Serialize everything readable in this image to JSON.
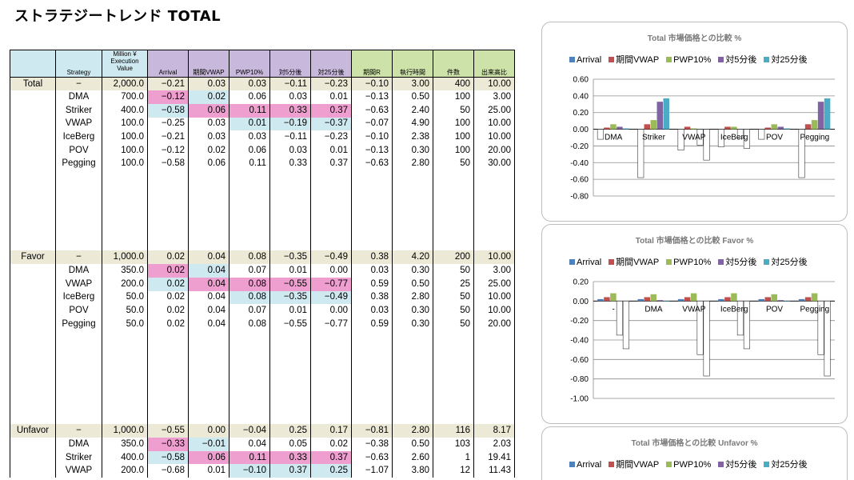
{
  "title": "ストラテジートレンド TOTAL",
  "headers": {
    "strategy": "Strategy",
    "mv1": "Million ¥",
    "mv2": "Execution",
    "mv3": "Value",
    "arrival": "Arrival",
    "kikan_vwap": "期間VWAP",
    "pwp10": "PWP10%",
    "tai5": "対5分後",
    "tai25": "対25分後",
    "kikan_r": "期間R",
    "exec_time": "執行時間",
    "count": "件数",
    "volume_ratio": "出来高比"
  },
  "table": {
    "total": {
      "label": "Total",
      "rows": [
        {
          "strategy": "−",
          "value": "2,000.0",
          "arrival": "−0.21",
          "vwap": "0.03",
          "pwp": "0.03",
          "t5": "−0.11",
          "t25": "−0.23",
          "r": "−0.10",
          "time": "3.00",
          "count": "400",
          "ratio": "10.00"
        },
        {
          "strategy": "DMA",
          "value": "700.0",
          "arrival": "−0.12",
          "vwap": "0.02",
          "pwp": "0.06",
          "t5": "0.03",
          "t25": "0.01",
          "r": "−0.13",
          "time": "0.50",
          "count": "100",
          "ratio": "3.00"
        },
        {
          "strategy": "Striker",
          "value": "400.0",
          "arrival": "−0.58",
          "vwap": "0.06",
          "pwp": "0.11",
          "t5": "0.33",
          "t25": "0.37",
          "r": "−0.63",
          "time": "2.40",
          "count": "50",
          "ratio": "25.00"
        },
        {
          "strategy": "VWAP",
          "value": "100.0",
          "arrival": "−0.25",
          "vwap": "0.03",
          "pwp": "0.01",
          "t5": "−0.19",
          "t25": "−0.37",
          "r": "−0.07",
          "time": "4.90",
          "count": "100",
          "ratio": "10.00"
        },
        {
          "strategy": "IceBerg",
          "value": "100.0",
          "arrival": "−0.21",
          "vwap": "0.03",
          "pwp": "0.03",
          "t5": "−0.11",
          "t25": "−0.23",
          "r": "−0.10",
          "time": "2.38",
          "count": "100",
          "ratio": "10.00"
        },
        {
          "strategy": "POV",
          "value": "100.0",
          "arrival": "−0.12",
          "vwap": "0.02",
          "pwp": "0.06",
          "t5": "0.03",
          "t25": "0.01",
          "r": "−0.13",
          "time": "0.30",
          "count": "100",
          "ratio": "20.00"
        },
        {
          "strategy": "Pegging",
          "value": "100.0",
          "arrival": "−0.58",
          "vwap": "0.06",
          "pwp": "0.11",
          "t5": "0.33",
          "t25": "0.37",
          "r": "−0.63",
          "time": "2.80",
          "count": "50",
          "ratio": "30.00"
        }
      ]
    },
    "favor": {
      "label": "Favor",
      "rows": [
        {
          "strategy": "−",
          "value": "1,000.0",
          "arrival": "0.02",
          "vwap": "0.04",
          "pwp": "0.08",
          "t5": "−0.35",
          "t25": "−0.49",
          "r": "0.38",
          "time": "4.20",
          "count": "200",
          "ratio": "10.00"
        },
        {
          "strategy": "DMA",
          "value": "350.0",
          "arrival": "0.02",
          "vwap": "0.04",
          "pwp": "0.07",
          "t5": "0.01",
          "t25": "0.00",
          "r": "0.03",
          "time": "0.30",
          "count": "50",
          "ratio": "3.00"
        },
        {
          "strategy": "VWAP",
          "value": "200.0",
          "arrival": "0.02",
          "vwap": "0.04",
          "pwp": "0.08",
          "t5": "−0.55",
          "t25": "−0.77",
          "r": "0.59",
          "time": "0.50",
          "count": "25",
          "ratio": "25.00"
        },
        {
          "strategy": "IceBerg",
          "value": "50.0",
          "arrival": "0.02",
          "vwap": "0.04",
          "pwp": "0.08",
          "t5": "−0.35",
          "t25": "−0.49",
          "r": "0.38",
          "time": "2.80",
          "count": "50",
          "ratio": "10.00"
        },
        {
          "strategy": "POV",
          "value": "50.0",
          "arrival": "0.02",
          "vwap": "0.04",
          "pwp": "0.07",
          "t5": "0.01",
          "t25": "0.00",
          "r": "0.03",
          "time": "0.30",
          "count": "50",
          "ratio": "10.00"
        },
        {
          "strategy": "Pegging",
          "value": "50.0",
          "arrival": "0.02",
          "vwap": "0.04",
          "pwp": "0.08",
          "t5": "−0.55",
          "t25": "−0.77",
          "r": "0.59",
          "time": "0.30",
          "count": "50",
          "ratio": "20.00"
        }
      ]
    },
    "unfavor": {
      "label": "Unfavor",
      "rows": [
        {
          "strategy": "−",
          "value": "1,000.0",
          "arrival": "−0.55",
          "vwap": "0.00",
          "pwp": "−0.04",
          "t5": "0.25",
          "t25": "0.17",
          "r": "−0.81",
          "time": "2.80",
          "count": "116",
          "ratio": "8.17"
        },
        {
          "strategy": "DMA",
          "value": "350.0",
          "arrival": "−0.33",
          "vwap": "−0.01",
          "pwp": "0.04",
          "t5": "0.05",
          "t25": "0.02",
          "r": "−0.38",
          "time": "0.50",
          "count": "103",
          "ratio": "2.03"
        },
        {
          "strategy": "Striker",
          "value": "400.0",
          "arrival": "−0.58",
          "vwap": "0.06",
          "pwp": "0.11",
          "t5": "0.33",
          "t25": "0.37",
          "r": "−0.63",
          "time": "2.60",
          "count": "1",
          "ratio": "19.41"
        },
        {
          "strategy": "VWAP",
          "value": "200.0",
          "arrival": "−0.68",
          "vwap": "0.01",
          "pwp": "−0.10",
          "t5": "0.37",
          "t25": "0.25",
          "r": "−1.07",
          "time": "3.80",
          "count": "12",
          "ratio": "11.43"
        }
      ]
    }
  },
  "colors": {
    "arrival": "#4f81bd",
    "kikan_vwap": "#c0504d",
    "pwp10": "#9bbb59",
    "tai5": "#8064a2",
    "tai25": "#4bacc6",
    "highlight_pink": "#ee9fcf",
    "highlight_blue": "#cfe9f1"
  },
  "legend": [
    "Arrival",
    "期間VWAP",
    "PWP10%",
    "対5分後",
    "対25分後"
  ],
  "chart_data": [
    {
      "type": "bar",
      "title": "Total 市場価格との比較 %",
      "categories": [
        "DMA",
        "Striker",
        "VWAP",
        "IceBerg",
        "POV",
        "Pegging"
      ],
      "ylim": [
        -0.8,
        0.6
      ],
      "yticks": [
        "0.60",
        "0.40",
        "0.20",
        "0.00",
        "-0.20",
        "-0.40",
        "-0.60",
        "-0.80"
      ],
      "grid": true,
      "legend_position": "top",
      "series": [
        {
          "name": "Arrival",
          "values": [
            -0.12,
            -0.58,
            -0.25,
            -0.21,
            -0.12,
            -0.58
          ]
        },
        {
          "name": "期間VWAP",
          "values": [
            0.02,
            0.06,
            0.03,
            0.03,
            0.02,
            0.06
          ]
        },
        {
          "name": "PWP10%",
          "values": [
            0.06,
            0.11,
            0.01,
            0.03,
            0.06,
            0.11
          ]
        },
        {
          "name": "対5分後",
          "values": [
            0.03,
            0.33,
            -0.19,
            -0.11,
            0.03,
            0.33
          ]
        },
        {
          "name": "対25分後",
          "values": [
            0.01,
            0.37,
            -0.37,
            -0.23,
            0.01,
            0.37
          ]
        }
      ]
    },
    {
      "type": "bar",
      "title": "Total 市場価格との比較 Favor %",
      "categories": [
        "-",
        "DMA",
        "VWAP",
        "IceBerg",
        "POV",
        "Pegging"
      ],
      "ylim": [
        -1.0,
        0.2
      ],
      "yticks": [
        "0.20",
        "0.00",
        "-0.20",
        "-0.40",
        "-0.60",
        "-0.80",
        "-1.00"
      ],
      "grid": true,
      "legend_position": "top",
      "series": [
        {
          "name": "Arrival",
          "values": [
            0.02,
            0.02,
            0.02,
            0.02,
            0.02,
            0.02
          ]
        },
        {
          "name": "期間VWAP",
          "values": [
            0.04,
            0.04,
            0.04,
            0.04,
            0.04,
            0.04
          ]
        },
        {
          "name": "PWP10%",
          "values": [
            0.08,
            0.07,
            0.08,
            0.08,
            0.07,
            0.08
          ]
        },
        {
          "name": "対5分後",
          "values": [
            -0.35,
            0.01,
            -0.55,
            -0.35,
            0.01,
            -0.55
          ]
        },
        {
          "name": "対25分後",
          "values": [
            -0.49,
            0.0,
            -0.77,
            -0.49,
            0.0,
            -0.77
          ]
        }
      ]
    },
    {
      "type": "bar",
      "title": "Total 市場価格との比較 Unfavor %",
      "categories": [],
      "series": [],
      "legend_position": "top"
    }
  ]
}
